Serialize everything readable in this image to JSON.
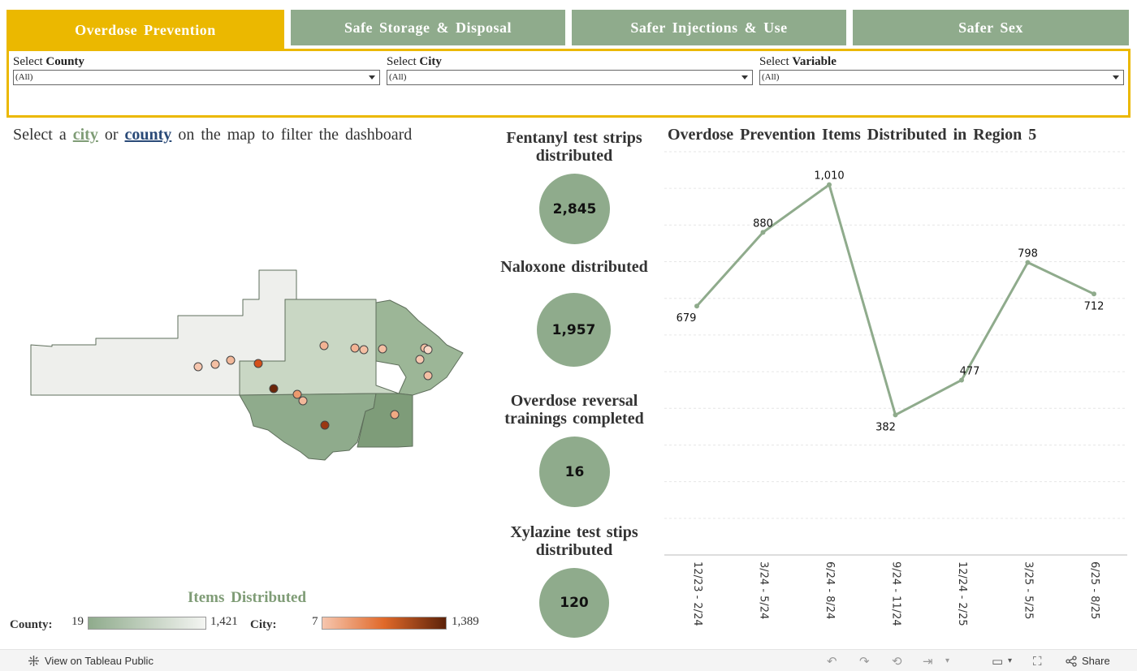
{
  "tabs": [
    {
      "label": "Overdose Prevention",
      "active": true
    },
    {
      "label": "Safe Storage & Disposal",
      "active": false
    },
    {
      "label": "Safer Injections & Use",
      "active": false
    },
    {
      "label": "Safer Sex",
      "active": false
    }
  ],
  "filters": [
    {
      "prefix": "Select",
      "name": "County",
      "value": "(All)"
    },
    {
      "prefix": "Select",
      "name": "City",
      "value": "(All)"
    },
    {
      "prefix": "Select",
      "name": "Variable",
      "value": "(All)"
    }
  ],
  "map": {
    "instruction_pre": "Select a",
    "city_word": "city",
    "or_word": "or",
    "county_word": "county",
    "instruction_post": "on the map to filter the dashboard"
  },
  "legend": {
    "title": "Items Distributed",
    "county_label": "County:",
    "county_min": "19",
    "county_max": "1,421",
    "city_label": "City:",
    "city_min": "7",
    "city_max": "1,389",
    "county_gradient": [
      "#8fab8c",
      "#f4f5f2"
    ],
    "city_gradient": [
      "#f6c6ae",
      "#e0692a",
      "#5c2209"
    ]
  },
  "kpis": [
    {
      "title_line1": "Fentanyl test strips",
      "title_line2": "distributed",
      "value": "2,845"
    },
    {
      "title_line1": "Naloxone distributed",
      "title_line2": "",
      "value": "1,957"
    },
    {
      "title_line1": "Overdose reversal",
      "title_line2": "trainings completed",
      "value": "16"
    },
    {
      "title_line1": "Xylazine test stips",
      "title_line2": "distributed",
      "value": "120"
    }
  ],
  "chart_data": {
    "type": "line",
    "title": "Overdose Prevention Items Distributed in Region 5",
    "categories": [
      "12/23 - 2/24",
      "3/24 - 5/24",
      "6/24 - 8/24",
      "9/24 - 11/24",
      "12/24 - 2/25",
      "3/25 - 5/25",
      "6/25 - 8/25"
    ],
    "values": [
      679,
      880,
      1010,
      382,
      477,
      798,
      712
    ],
    "data_labels": [
      "679",
      "880",
      "1,010",
      "382",
      "477",
      "798",
      "712"
    ],
    "ylim": [
      0,
      1100
    ],
    "grid": true,
    "color": "#8fab8c"
  },
  "colors": {
    "accent": "#ebb800",
    "tab": "#8fab8c"
  },
  "toolbar": {
    "view_label": "View on Tableau Public",
    "share_label": "Share"
  }
}
